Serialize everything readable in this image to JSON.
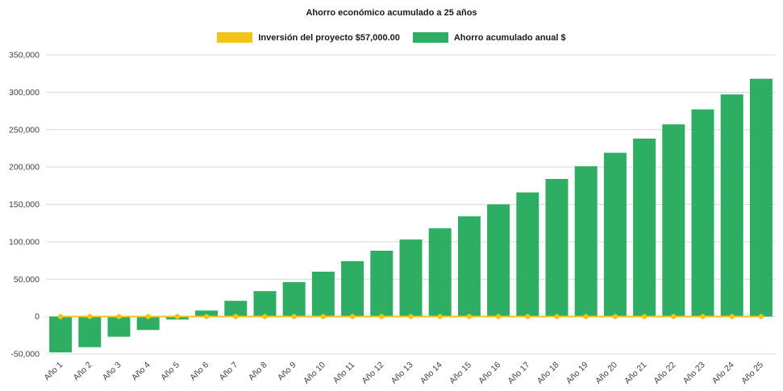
{
  "chart_data": {
    "type": "bar",
    "title": "Ahorro económico acumulado a 25 años",
    "categories": [
      "Año 1",
      "Año 2",
      "Año 3",
      "Año 4",
      "Año 5",
      "Año 6",
      "Año 7",
      "Año 8",
      "Año 9",
      "Año 10",
      "Año 11",
      "Año 12",
      "Año 13",
      "Año 14",
      "Año 15",
      "Año 16",
      "Año 17",
      "Año 18",
      "Año 19",
      "Año 20",
      "Año 21",
      "Año 22",
      "Año 23",
      "Año 24",
      "Año 25"
    ],
    "series": [
      {
        "name": "Inversión del proyecto $57,000.00",
        "type": "line",
        "color": "#F0C419",
        "marker": "circle",
        "values": [
          0,
          0,
          0,
          0,
          0,
          0,
          0,
          0,
          0,
          0,
          0,
          0,
          0,
          0,
          0,
          0,
          0,
          0,
          0,
          0,
          0,
          0,
          0,
          0,
          0
        ]
      },
      {
        "name": "Ahorro acumulado anual $",
        "type": "bar",
        "color": "#2EAE62",
        "values": [
          -48000,
          -41000,
          -27000,
          -18000,
          -4000,
          8000,
          21000,
          34000,
          46000,
          60000,
          74000,
          88000,
          103000,
          118000,
          134000,
          150000,
          166000,
          184000,
          201000,
          219000,
          238000,
          257000,
          277000,
          297000,
          318000
        ]
      }
    ],
    "ylim": [
      -50000,
      350000
    ],
    "ytick_step": 50000,
    "grid": true,
    "gridline_color": "#d9d9d9",
    "axis_label_color": "#404040",
    "legend_position": "top"
  }
}
